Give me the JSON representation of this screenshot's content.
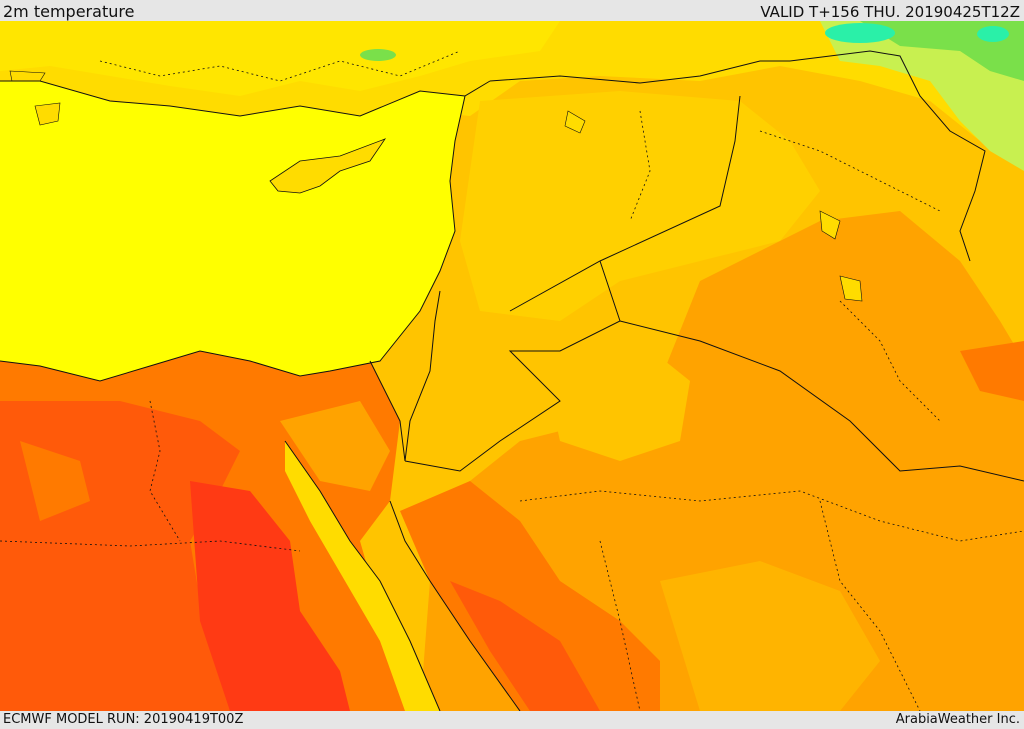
{
  "header": {
    "title": "2m temperature",
    "valid_time": "VALID T+156 THU. 20190425T12Z"
  },
  "footer": {
    "model_run": "ECMWF MODEL RUN: 20190419T00Z",
    "provider": "ArabiaWeather Inc."
  },
  "colors": {
    "sea": "#ffff00",
    "yellow_orange": "#ffdc00",
    "light_orange": "#ffc400",
    "orange": "#ffa300",
    "dark_orange": "#ff7a00",
    "red_orange": "#ff5a0a",
    "red": "#ff3a14",
    "light_green": "#c8f050",
    "green": "#7ae04a",
    "cyan": "#2af0a8",
    "border": "#111111"
  }
}
